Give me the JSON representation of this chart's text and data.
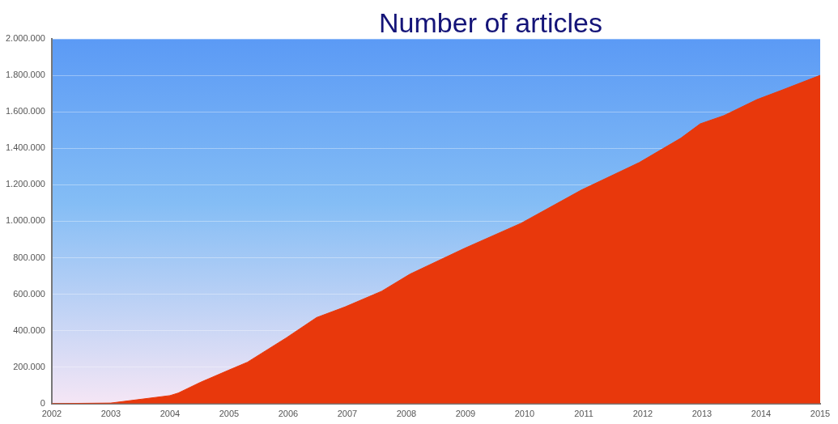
{
  "chart_data": {
    "type": "area",
    "title": "Number of articles",
    "x": [
      2002,
      2003,
      2004,
      2004.14,
      2004.51,
      2004.99,
      2005.31,
      2005.97,
      2006.48,
      2006.96,
      2007.58,
      2008.06,
      2008.98,
      2009.94,
      2010.96,
      2011.94,
      2012.64,
      2012.97,
      2013.37,
      2013.93,
      2014.33,
      2015
    ],
    "series": [
      {
        "color": "#e8380c",
        "values": [
          0,
          3000,
          44000,
          58000,
          116000,
          183000,
          227000,
          361000,
          472000,
          530000,
          616000,
          710000,
          851000,
          989000,
          1171000,
          1322000,
          1455000,
          1534000,
          1579000,
          1667000,
          1716000,
          1800000
        ]
      }
    ],
    "xlim": [
      2002,
      2015
    ],
    "xticks": [
      2002,
      2003,
      2004,
      2005,
      2006,
      2007,
      2008,
      2009,
      2010,
      2011,
      2012,
      2013,
      2014,
      2015
    ],
    "ylim": [
      0,
      2000000
    ],
    "yticks": [
      {
        "value": 0,
        "label": "0"
      },
      {
        "value": 200000,
        "label": "200.000"
      },
      {
        "value": 400000,
        "label": "400.000"
      },
      {
        "value": 600000,
        "label": "600.000"
      },
      {
        "value": 800000,
        "label": "800.000"
      },
      {
        "value": 1000000,
        "label": "1.000.000"
      },
      {
        "value": 1200000,
        "label": "1.200.000"
      },
      {
        "value": 1400000,
        "label": "1.400.000"
      },
      {
        "value": 1600000,
        "label": "1.600.000"
      },
      {
        "value": 1800000,
        "label": "1.800.000"
      },
      {
        "value": 2000000,
        "label": "2.000.000"
      }
    ],
    "grid": "y",
    "legend": false
  }
}
